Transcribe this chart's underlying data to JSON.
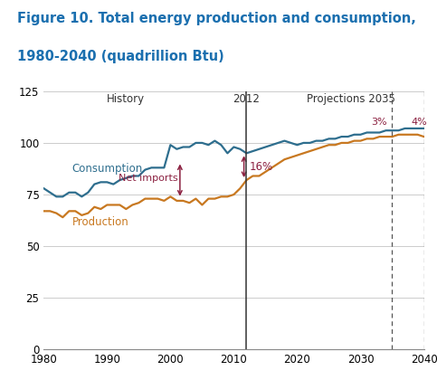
{
  "title_line1": "Figure 10. Total energy production and consumption,",
  "title_line2": "1980-2040 (quadrillion Btu)",
  "title_color": "#1a6faf",
  "title_fontsize": 10.5,
  "xlim": [
    1980,
    2040
  ],
  "ylim": [
    0,
    125
  ],
  "yticks": [
    0,
    25,
    50,
    75,
    100,
    125
  ],
  "xticks": [
    1980,
    1990,
    2000,
    2010,
    2020,
    2030,
    2040
  ],
  "consumption_color": "#2e6e8e",
  "production_color": "#c87820",
  "annotation_color": "#8b2040",
  "grid_color": "#cccccc",
  "history_label": "History",
  "projections_label": "Projections 2035",
  "year_2012_label": "2012",
  "consumption_label": "Consumption",
  "production_label": "Production",
  "net_imports_label": "Net imports",
  "pct_16_label": "16%",
  "pct_3_label": "3%",
  "pct_4_label": "4%",
  "vline_2012": 2012,
  "vline_2035": 2035,
  "vline_2040": 2040,
  "consumption_years": [
    1980,
    1981,
    1982,
    1983,
    1984,
    1985,
    1986,
    1987,
    1988,
    1989,
    1990,
    1991,
    1992,
    1993,
    1994,
    1995,
    1996,
    1997,
    1998,
    1999,
    2000,
    2001,
    2002,
    2003,
    2004,
    2005,
    2006,
    2007,
    2008,
    2009,
    2010,
    2011,
    2012,
    2013,
    2014,
    2015,
    2016,
    2017,
    2018,
    2019,
    2020,
    2021,
    2022,
    2023,
    2024,
    2025,
    2026,
    2027,
    2028,
    2029,
    2030,
    2031,
    2032,
    2033,
    2034,
    2035,
    2036,
    2037,
    2038,
    2039,
    2040
  ],
  "consumption_values": [
    78,
    76,
    74,
    74,
    76,
    76,
    74,
    76,
    80,
    81,
    81,
    80,
    82,
    83,
    84,
    84,
    87,
    88,
    88,
    88,
    99,
    97,
    98,
    98,
    100,
    100,
    99,
    101,
    99,
    95,
    98,
    97,
    95,
    96,
    97,
    98,
    99,
    100,
    101,
    100,
    99,
    100,
    100,
    101,
    101,
    102,
    102,
    103,
    103,
    104,
    104,
    105,
    105,
    105,
    106,
    106,
    106,
    107,
    107,
    107,
    107
  ],
  "production_years": [
    1980,
    1981,
    1982,
    1983,
    1984,
    1985,
    1986,
    1987,
    1988,
    1989,
    1990,
    1991,
    1992,
    1993,
    1994,
    1995,
    1996,
    1997,
    1998,
    1999,
    2000,
    2001,
    2002,
    2003,
    2004,
    2005,
    2006,
    2007,
    2008,
    2009,
    2010,
    2011,
    2012,
    2013,
    2014,
    2015,
    2016,
    2017,
    2018,
    2019,
    2020,
    2021,
    2022,
    2023,
    2024,
    2025,
    2026,
    2027,
    2028,
    2029,
    2030,
    2031,
    2032,
    2033,
    2034,
    2035,
    2036,
    2037,
    2038,
    2039,
    2040
  ],
  "production_values": [
    67,
    67,
    66,
    64,
    67,
    67,
    65,
    66,
    69,
    68,
    70,
    70,
    70,
    68,
    70,
    71,
    73,
    73,
    73,
    72,
    74,
    72,
    72,
    71,
    73,
    70,
    73,
    73,
    74,
    74,
    75,
    78,
    82,
    84,
    84,
    86,
    88,
    90,
    92,
    93,
    94,
    95,
    96,
    97,
    98,
    99,
    99,
    100,
    100,
    101,
    101,
    102,
    102,
    103,
    103,
    103,
    104,
    104,
    104,
    104,
    103
  ]
}
